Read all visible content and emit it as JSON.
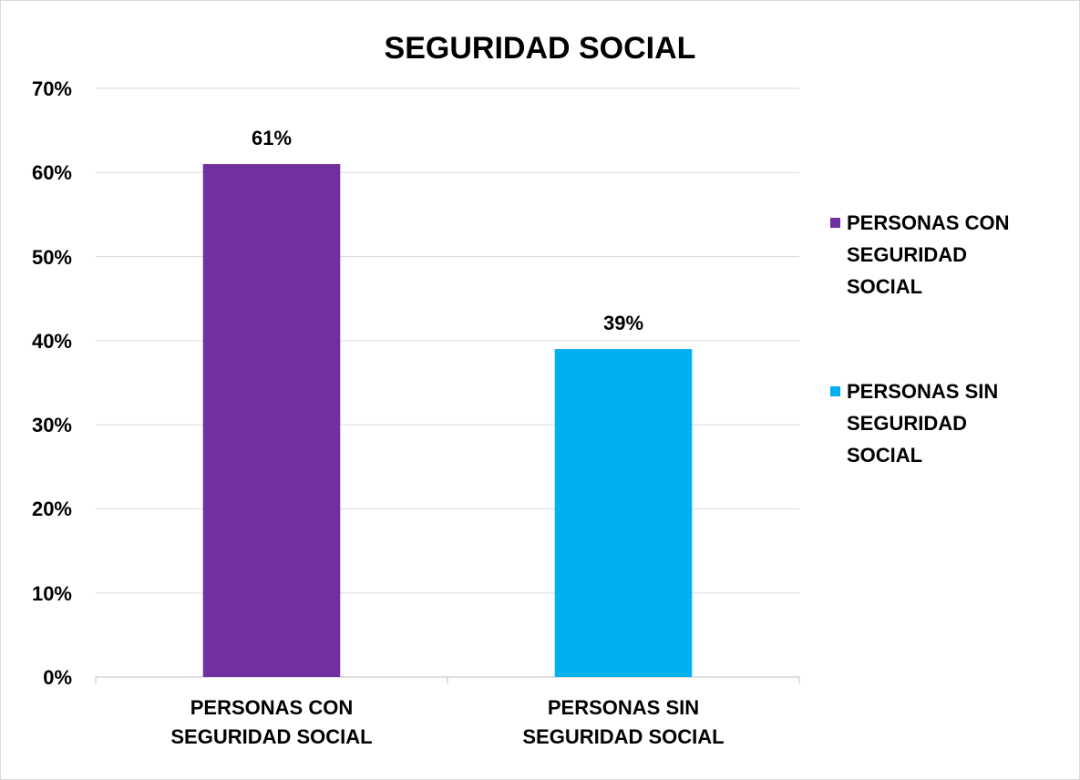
{
  "chart_data": {
    "type": "bar",
    "title": "SEGURIDAD SOCIAL",
    "categories": [
      "PERSONAS CON SEGURIDAD SOCIAL",
      "PERSONAS SIN SEGURIDAD SOCIAL"
    ],
    "values": [
      61,
      39
    ],
    "value_labels": [
      "61%",
      "39%"
    ],
    "colors": [
      "#7030a0",
      "#00b0f0"
    ],
    "ylim": [
      0,
      70
    ],
    "yticks": [
      {
        "value": 0,
        "label": "0%"
      },
      {
        "value": 10,
        "label": "10%"
      },
      {
        "value": 20,
        "label": "20%"
      },
      {
        "value": 30,
        "label": "30%"
      },
      {
        "value": 40,
        "label": "40%"
      },
      {
        "value": 50,
        "label": "50%"
      },
      {
        "value": 60,
        "label": "60%"
      },
      {
        "value": 70,
        "label": "70%"
      }
    ],
    "grid": true,
    "legend": "right"
  }
}
